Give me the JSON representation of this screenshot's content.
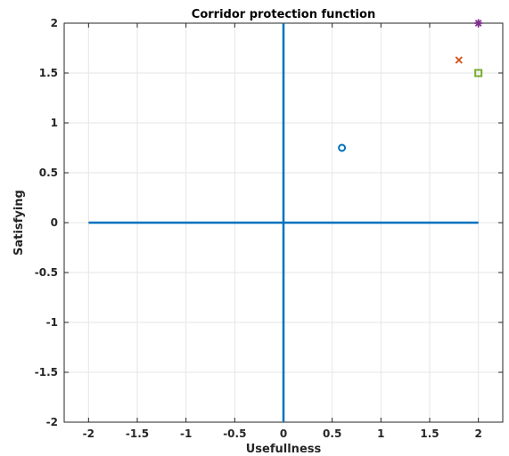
{
  "chart_data": {
    "type": "scatter",
    "title": "Corridor protection function",
    "xlabel": "Usefullness",
    "ylabel": "Satisfying",
    "xlim": [
      -2.25,
      2.25
    ],
    "ylim": [
      -2,
      2
    ],
    "xticks": [
      -2,
      -1.5,
      -1,
      -0.5,
      0,
      0.5,
      1,
      1.5,
      2
    ],
    "xtick_labels": [
      "-2",
      "-1.5",
      "-1",
      "-0.5",
      "0",
      "0.5",
      "1",
      "1.5",
      "2"
    ],
    "yticks": [
      -2,
      -1.5,
      -1,
      -0.5,
      0,
      0.5,
      1,
      1.5,
      2
    ],
    "ytick_labels": [
      "-2",
      "-1.5",
      "-1",
      "-0.5",
      "0",
      "0.5",
      "1",
      "1.5",
      "2"
    ],
    "grid": true,
    "lines": [
      {
        "x": [
          -2,
          2
        ],
        "y": [
          0,
          0
        ],
        "color": "#0072BD"
      },
      {
        "x": [
          0,
          0
        ],
        "y": [
          -2,
          2
        ],
        "color": "#0072BD"
      }
    ],
    "series": [
      {
        "marker": "circle",
        "color": "#0072BD",
        "x": [
          0.6
        ],
        "y": [
          0.75
        ]
      },
      {
        "marker": "x",
        "color": "#D95319",
        "x": [
          1.8
        ],
        "y": [
          1.63
        ]
      },
      {
        "marker": "square",
        "color": "#77AC30",
        "x": [
          2
        ],
        "y": [
          1.5
        ]
      },
      {
        "marker": "star",
        "color": "#7E2F8E",
        "x": [
          2
        ],
        "y": [
          2
        ]
      }
    ]
  }
}
